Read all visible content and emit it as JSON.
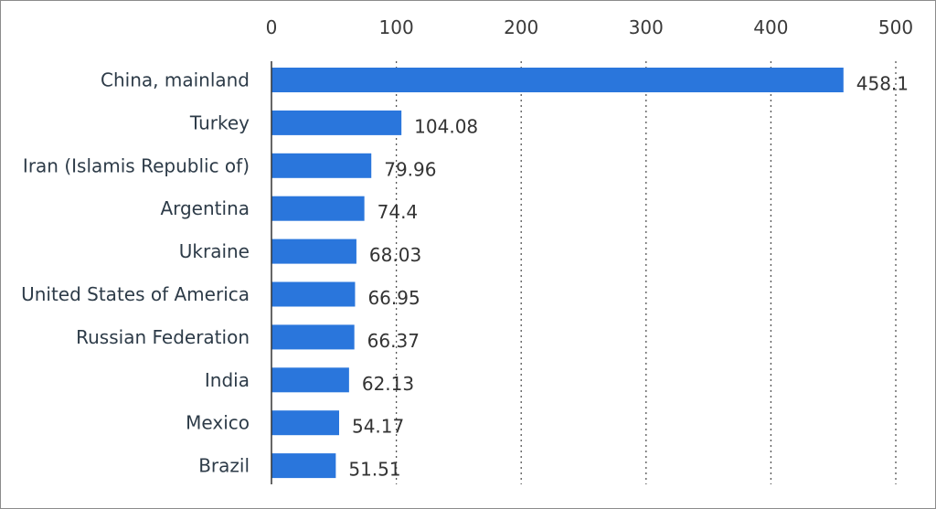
{
  "chart_data": {
    "type": "bar",
    "orientation": "horizontal",
    "categories": [
      "China, mainland",
      "Turkey",
      "Iran (Islamis Republic of)",
      "Argentina",
      "Ukraine",
      "United States of America",
      "Russian Federation",
      "India",
      "Mexico",
      "Brazil"
    ],
    "values": [
      458.1,
      104.08,
      79.96,
      74.4,
      68.03,
      66.95,
      66.37,
      62.13,
      54.17,
      51.51
    ],
    "value_labels": [
      "458.1",
      "104.08",
      "79.96",
      "74.4",
      "68.03",
      "66.95",
      "66.37",
      "62.13",
      "54.17",
      "51.51"
    ],
    "x_ticks": [
      "0",
      "100",
      "200",
      "300",
      "400",
      "500"
    ],
    "xlim": [
      0,
      500
    ],
    "x_axis_position": "top",
    "grid": "vertical dotted",
    "legend": "none",
    "bar_color": "#2a76dc"
  }
}
